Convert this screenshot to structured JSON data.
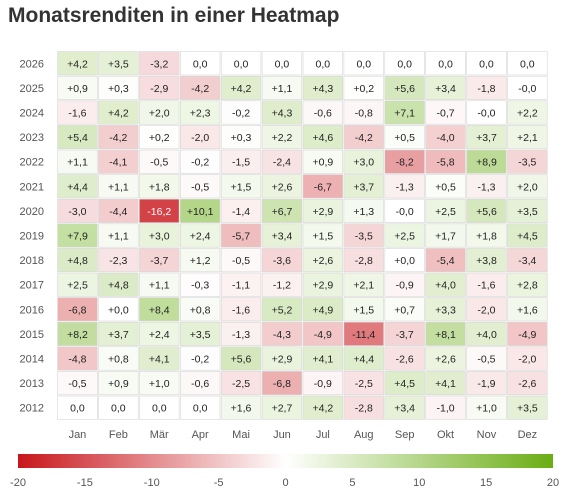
{
  "chart_data": {
    "type": "heatmap",
    "title": "Monatsrenditen in einer Heatmap",
    "months": [
      "Jan",
      "Feb",
      "Mär",
      "Apr",
      "Mai",
      "Jun",
      "Jul",
      "Aug",
      "Sep",
      "Okt",
      "Nov",
      "Dez"
    ],
    "years": [
      "2026",
      "2025",
      "2024",
      "2023",
      "2022",
      "2021",
      "2020",
      "2019",
      "2018",
      "2017",
      "2016",
      "2015",
      "2014",
      "2013",
      "2012"
    ],
    "values": [
      [
        4.2,
        3.5,
        -3.2,
        0.0,
        0.0,
        0.0,
        0.0,
        0.0,
        0.0,
        0.0,
        0.0,
        0.0
      ],
      [
        0.9,
        0.3,
        -2.9,
        -4.2,
        4.2,
        1.1,
        4.3,
        0.2,
        5.6,
        3.4,
        -1.8,
        -0.0
      ],
      [
        -1.6,
        4.2,
        2.0,
        2.3,
        -0.2,
        4.3,
        -0.6,
        -0.8,
        7.1,
        -0.7,
        -0.0,
        2.2
      ],
      [
        5.4,
        -4.2,
        0.2,
        -2.0,
        0.3,
        2.2,
        4.6,
        -4.2,
        0.5,
        -4.0,
        3.7,
        2.1
      ],
      [
        1.1,
        -4.1,
        -0.5,
        -0.2,
        -1.5,
        -2.4,
        0.9,
        3.0,
        -8.2,
        -5.8,
        8.9,
        -3.5
      ],
      [
        4.4,
        1.1,
        1.8,
        -0.5,
        1.5,
        2.6,
        -6.7,
        3.7,
        -1.3,
        0.5,
        -1.3,
        2.0
      ],
      [
        -3.0,
        -4.4,
        -16.2,
        10.1,
        -1.4,
        6.7,
        2.9,
        1.3,
        -0.0,
        2.5,
        5.6,
        3.5
      ],
      [
        7.9,
        1.1,
        3.0,
        2.4,
        -5.7,
        3.4,
        1.5,
        -3.5,
        2.5,
        1.7,
        1.8,
        4.5
      ],
      [
        4.8,
        -2.3,
        -3.7,
        1.2,
        -0.5,
        -3.6,
        2.6,
        -2.8,
        0.0,
        -5.4,
        3.8,
        -3.4
      ],
      [
        2.5,
        4.8,
        1.1,
        -0.3,
        -1.1,
        -1.2,
        2.9,
        2.1,
        -0.9,
        4.0,
        -1.6,
        2.8
      ],
      [
        -6.8,
        0.0,
        8.4,
        0.8,
        -1.6,
        5.2,
        4.9,
        1.5,
        0.7,
        3.3,
        -2.0,
        1.6
      ],
      [
        8.2,
        3.7,
        2.4,
        3.5,
        -1.3,
        -4.3,
        -4.9,
        -11.4,
        -3.7,
        8.1,
        4.0,
        -4.9
      ],
      [
        -4.8,
        0.8,
        4.1,
        -0.2,
        5.6,
        2.9,
        4.1,
        4.4,
        -2.6,
        2.6,
        -0.5,
        -2.0
      ],
      [
        -0.5,
        0.9,
        1.0,
        -0.6,
        -2.5,
        -6.8,
        -0.9,
        -2.5,
        4.5,
        4.1,
        -1.9,
        -2.6
      ],
      [
        0.0,
        0.0,
        0.0,
        0.0,
        1.6,
        2.7,
        4.2,
        -2.8,
        3.4,
        -1.0,
        1.0,
        3.5
      ]
    ],
    "labels": [
      [
        "+4,2",
        "+3,5",
        "-3,2",
        "0,0",
        "0,0",
        "0,0",
        "0,0",
        "0,0",
        "0,0",
        "0,0",
        "0,0",
        "0,0"
      ],
      [
        "+0,9",
        "+0,3",
        "-2,9",
        "-4,2",
        "+4,2",
        "+1,1",
        "+4,3",
        "+0,2",
        "+5,6",
        "+3,4",
        "-1,8",
        "-0,0"
      ],
      [
        "-1,6",
        "+4,2",
        "+2,0",
        "+2,3",
        "-0,2",
        "+4,3",
        "-0,6",
        "-0,8",
        "+7,1",
        "-0,7",
        "-0,0",
        "+2,2"
      ],
      [
        "+5,4",
        "-4,2",
        "+0,2",
        "-2,0",
        "+0,3",
        "+2,2",
        "+4,6",
        "-4,2",
        "+0,5",
        "-4,0",
        "+3,7",
        "+2,1"
      ],
      [
        "+1,1",
        "-4,1",
        "-0,5",
        "-0,2",
        "-1,5",
        "-2,4",
        "+0,9",
        "+3,0",
        "-8,2",
        "-5,8",
        "+8,9",
        "-3,5"
      ],
      [
        "+4,4",
        "+1,1",
        "+1,8",
        "-0,5",
        "+1,5",
        "+2,6",
        "-6,7",
        "+3,7",
        "-1,3",
        "+0,5",
        "-1,3",
        "+2,0"
      ],
      [
        "-3,0",
        "-4,4",
        "-16,2",
        "+10,1",
        "-1,4",
        "+6,7",
        "+2,9",
        "+1,3",
        "-0,0",
        "+2,5",
        "+5,6",
        "+3,5"
      ],
      [
        "+7,9",
        "+1,1",
        "+3,0",
        "+2,4",
        "-5,7",
        "+3,4",
        "+1,5",
        "-3,5",
        "+2,5",
        "+1,7",
        "+1,8",
        "+4,5"
      ],
      [
        "+4,8",
        "-2,3",
        "-3,7",
        "+1,2",
        "-0,5",
        "-3,6",
        "+2,6",
        "-2,8",
        "+0,0",
        "-5,4",
        "+3,8",
        "-3,4"
      ],
      [
        "+2,5",
        "+4,8",
        "+1,1",
        "-0,3",
        "-1,1",
        "-1,2",
        "+2,9",
        "+2,1",
        "-0,9",
        "+4,0",
        "-1,6",
        "+2,8"
      ],
      [
        "-6,8",
        "+0,0",
        "+8,4",
        "+0,8",
        "-1,6",
        "+5,2",
        "+4,9",
        "+1,5",
        "+0,7",
        "+3,3",
        "-2,0",
        "+1,6"
      ],
      [
        "+8,2",
        "+3,7",
        "+2,4",
        "+3,5",
        "-1,3",
        "-4,3",
        "-4,9",
        "-11,4",
        "-3,7",
        "+8,1",
        "+4,0",
        "-4,9"
      ],
      [
        "-4,8",
        "+0,8",
        "+4,1",
        "-0,2",
        "+5,6",
        "+2,9",
        "+4,1",
        "+4,4",
        "-2,6",
        "+2,6",
        "-0,5",
        "-2,0"
      ],
      [
        "-0,5",
        "+0,9",
        "+1,0",
        "-0,6",
        "-2,5",
        "-6,8",
        "-0,9",
        "-2,5",
        "+4,5",
        "+4,1",
        "-1,9",
        "-2,6"
      ],
      [
        "0,0",
        "0,0",
        "0,0",
        "0,0",
        "+1,6",
        "+2,7",
        "+4,2",
        "-2,8",
        "+3,4",
        "-1,0",
        "+1,0",
        "+3,5"
      ]
    ],
    "colorscale": {
      "min": -20,
      "max": 20,
      "negative_color": "#c8161b",
      "neutral_color": "#ffffff",
      "positive_color": "#6aad14",
      "ticks": [
        -20,
        -15,
        -10,
        -5,
        0,
        5,
        10,
        15,
        20
      ]
    }
  }
}
